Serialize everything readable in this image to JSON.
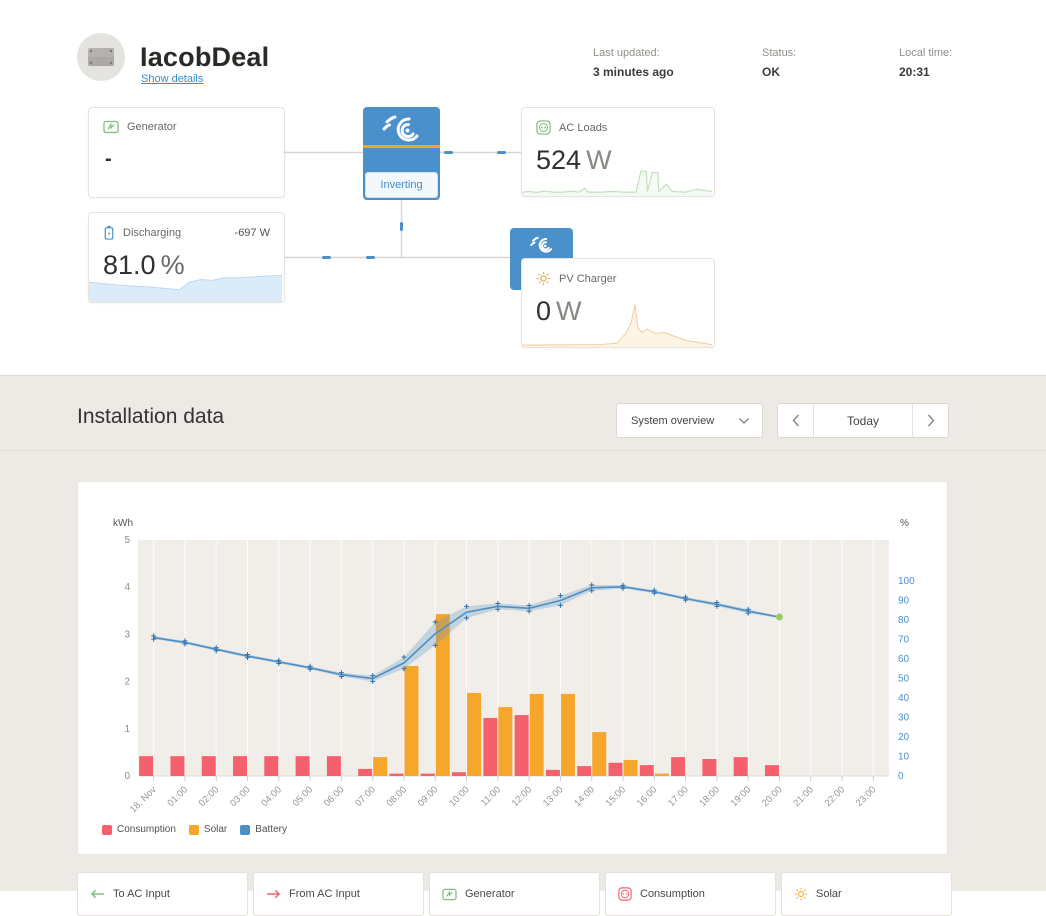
{
  "header": {
    "title": "IacobDeal",
    "show_details": "Show details",
    "status": [
      {
        "label": "Last updated:",
        "value": "3 minutes ago"
      },
      {
        "label": "Status:",
        "value": "OK"
      },
      {
        "label": "Local time:",
        "value": "20:31"
      }
    ]
  },
  "diagram": {
    "generator": {
      "label": "Generator",
      "value": "-"
    },
    "inverter": {
      "state": "Inverting"
    },
    "ac_loads": {
      "label": "AC Loads",
      "value": "524",
      "unit": "W"
    },
    "battery": {
      "label": "Discharging",
      "power": "-697 W",
      "value": "81.0",
      "unit": "%"
    },
    "pv_charger": {
      "label": "PV Charger",
      "value": "0",
      "unit": "W"
    },
    "sparklines": {
      "ac_loads": [
        [
          0,
          0.1
        ],
        [
          0.04,
          0.12
        ],
        [
          0.08,
          0.09
        ],
        [
          0.12,
          0.14
        ],
        [
          0.16,
          0.1
        ],
        [
          0.22,
          0.1
        ],
        [
          0.26,
          0.13
        ],
        [
          0.3,
          0.1
        ],
        [
          0.33,
          0.24
        ],
        [
          0.35,
          0.1
        ],
        [
          0.42,
          0.1
        ],
        [
          0.48,
          0.12
        ],
        [
          0.54,
          0.1
        ],
        [
          0.6,
          0.1
        ],
        [
          0.625,
          0.82
        ],
        [
          0.655,
          0.82
        ],
        [
          0.66,
          0.12
        ],
        [
          0.685,
          0.78
        ],
        [
          0.715,
          0.78
        ],
        [
          0.72,
          0.12
        ],
        [
          0.76,
          0.38
        ],
        [
          0.79,
          0.12
        ],
        [
          0.86,
          0.1
        ],
        [
          0.92,
          0.2
        ],
        [
          1,
          0.12
        ]
      ],
      "battery": [
        [
          0,
          0.44
        ],
        [
          0.08,
          0.4
        ],
        [
          0.18,
          0.36
        ],
        [
          0.3,
          0.33
        ],
        [
          0.4,
          0.29
        ],
        [
          0.47,
          0.26
        ],
        [
          0.52,
          0.44
        ],
        [
          0.58,
          0.5
        ],
        [
          0.64,
          0.48
        ],
        [
          0.7,
          0.54
        ],
        [
          0.78,
          0.54
        ],
        [
          0.88,
          0.57
        ],
        [
          1,
          0.6
        ]
      ],
      "pv": [
        [
          0,
          0.02
        ],
        [
          0.4,
          0.03
        ],
        [
          0.5,
          0.06
        ],
        [
          0.55,
          0.3
        ],
        [
          0.575,
          0.52
        ],
        [
          0.595,
          0.92
        ],
        [
          0.61,
          0.4
        ],
        [
          0.63,
          0.3
        ],
        [
          0.66,
          0.38
        ],
        [
          0.7,
          0.28
        ],
        [
          0.75,
          0.3
        ],
        [
          0.8,
          0.22
        ],
        [
          0.87,
          0.12
        ],
        [
          0.94,
          0.07
        ],
        [
          1,
          0.03
        ]
      ]
    }
  },
  "installation": {
    "title": "Installation data",
    "range_selector": "System overview",
    "today": "Today"
  },
  "chart_data": {
    "type": "bar+line",
    "categories": [
      "18. Nov",
      "01:00",
      "02:00",
      "03:00",
      "04:00",
      "05:00",
      "06:00",
      "07:00",
      "08:00",
      "09:00",
      "10:00",
      "11:00",
      "12:00",
      "13:00",
      "14:00",
      "15:00",
      "16:00",
      "17:00",
      "18:00",
      "19:00",
      "20:00",
      "21:00",
      "22:00",
      "23:00"
    ],
    "axes": {
      "left": {
        "title": "kWh",
        "min": 0,
        "max": 5,
        "step": 1
      },
      "right": {
        "title": "%",
        "min": 0,
        "max": 100,
        "step": 10
      }
    },
    "series": [
      {
        "name": "Consumption",
        "type": "bar",
        "axis": "left",
        "color": "#F4606C",
        "values": [
          0.42,
          0.42,
          0.42,
          0.42,
          0.42,
          0.42,
          0.42,
          0.15,
          0.05,
          0.05,
          0.08,
          1.23,
          1.29,
          0.13,
          0.21,
          0.28,
          0.23,
          0.4,
          0.36,
          0.4,
          0.23,
          null,
          null,
          null
        ]
      },
      {
        "name": "Solar",
        "type": "bar",
        "axis": "left",
        "color": "#F5A62B",
        "values": [
          0,
          0,
          0,
          0,
          0,
          0,
          0,
          0.4,
          2.33,
          3.43,
          1.76,
          1.46,
          1.74,
          1.74,
          0.93,
          0.34,
          0.05,
          0,
          0,
          0,
          0,
          null,
          null,
          null
        ]
      },
      {
        "name": "Battery",
        "type": "line",
        "axis": "right",
        "color": "#4A90C6",
        "band_color": "rgba(93,150,199,0.30)",
        "marker_color": "#2F6FA8",
        "last_point_color": "#9CCC65",
        "values": [
          71,
          68.5,
          65,
          61.5,
          58.5,
          55.5,
          52,
          50,
          58,
          73,
          84,
          87,
          86,
          90,
          96.5,
          97,
          94.5,
          91,
          88,
          84.5,
          81.5,
          null,
          null,
          null
        ],
        "band": [
          0.8,
          0.8,
          0.8,
          0.8,
          0.8,
          0.8,
          1,
          1.5,
          3,
          6,
          3,
          1.5,
          1.5,
          2.5,
          1.5,
          0.8,
          0.8,
          0.8,
          1,
          1,
          0.5,
          null,
          null,
          null
        ]
      }
    ],
    "legend_position": "bottom-left",
    "plot_bg": "#F1EEE9",
    "grid": "vertical-white"
  },
  "bottom_cards": [
    {
      "label": "To AC Input",
      "icon": "arrow-left",
      "color": "#7CBF7C"
    },
    {
      "label": "From AC Input",
      "icon": "arrow-right",
      "color": "#F4606C"
    },
    {
      "label": "Generator",
      "icon": "generator",
      "color": "#7CBF7C"
    },
    {
      "label": "Consumption",
      "icon": "plug",
      "color": "#F4606C"
    },
    {
      "label": "Solar",
      "icon": "sun",
      "color": "#F5A62B"
    }
  ],
  "colors": {
    "accent_blue": "#4A90CB",
    "link_blue": "#2E8FD0",
    "consumption": "#F4606C",
    "solar": "#F5A62B",
    "battery": "#4A90C6",
    "page_background": "#EDEAE5"
  }
}
